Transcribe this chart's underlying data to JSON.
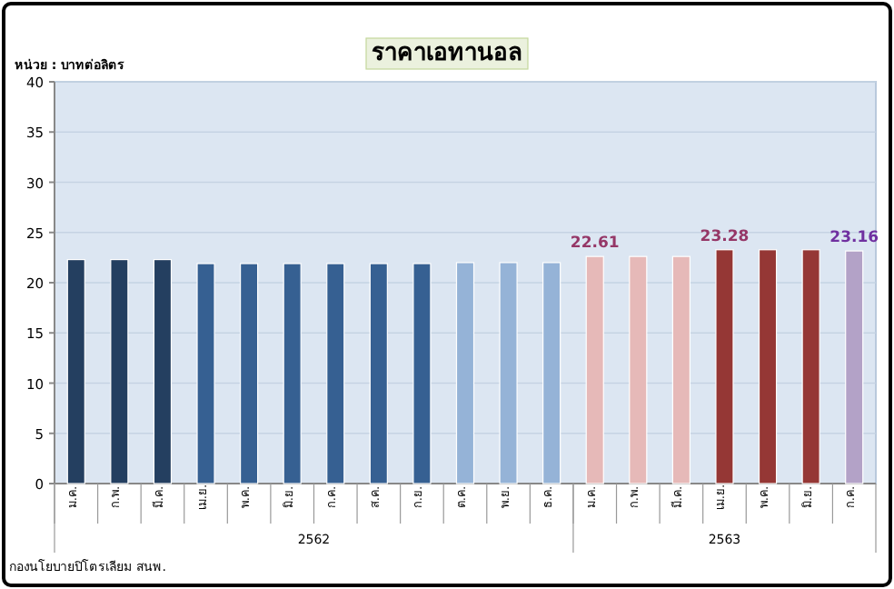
{
  "chart_data": {
    "type": "bar",
    "title": "ราคาเอทานอล",
    "ylabel": "หน่วย : บาทต่อลิตร",
    "categories": [
      "ม.ค.",
      "ก.พ.",
      "มี.ค.",
      "เม.ย.",
      "พ.ค.",
      "มิ.ย.",
      "ก.ค.",
      "ส.ค.",
      "ก.ย.",
      "ต.ค.",
      "พ.ย.",
      "ธ.ค.",
      "ม.ค.",
      "ก.พ.",
      "มี.ค.",
      "เม.ย.",
      "พ.ค.",
      "มิ.ย.",
      "ก.ค."
    ],
    "values": [
      22.3,
      22.3,
      22.3,
      21.9,
      21.9,
      21.9,
      21.9,
      21.9,
      21.9,
      22.0,
      22.0,
      22.0,
      22.61,
      22.61,
      22.61,
      23.28,
      23.28,
      23.28,
      23.16
    ],
    "colors": [
      "#243f60",
      "#243f60",
      "#243f60",
      "#366092",
      "#366092",
      "#366092",
      "#366092",
      "#366092",
      "#366092",
      "#95b3d7",
      "#95b3d7",
      "#95b3d7",
      "#e6b9b8",
      "#e6b9b8",
      "#e6b9b8",
      "#953735",
      "#953735",
      "#953735",
      "#b3a2c7"
    ],
    "value_labels": [
      null,
      null,
      null,
      null,
      null,
      null,
      null,
      null,
      null,
      null,
      null,
      null,
      "22.61",
      null,
      null,
      "23.28",
      null,
      null,
      "23.16"
    ],
    "ylim": [
      0,
      40
    ],
    "yticks": [
      0,
      5,
      10,
      15,
      20,
      25,
      30,
      35,
      40
    ],
    "grid": "y",
    "annotations": [
      "2562",
      "2563",
      "กองนโยบายปิโตรเลียม สนพ."
    ]
  }
}
